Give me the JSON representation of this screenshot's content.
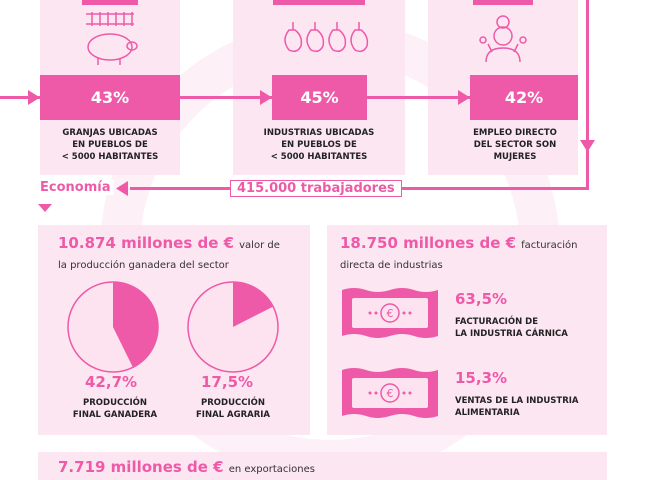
{
  "top_stats": [
    {
      "value": "43%",
      "caption": [
        "GRANJAS UBICADAS",
        "EN PUEBLOS DE",
        "< 5000 HABITANTES"
      ],
      "icon": "pig-icon"
    },
    {
      "value": "45%",
      "caption": [
        "INDUSTRIAS UBICADAS",
        "EN PUEBLOS DE",
        "< 5000 HABITANTES"
      ],
      "icon": "ham-icon"
    },
    {
      "value": "42%",
      "caption": [
        "EMPLEO DIRECTO",
        "DEL SECTOR SON",
        "MUJERES"
      ],
      "icon": "woman-icon"
    }
  ],
  "flow": {
    "section_label": "Economía",
    "workers_label": "415.000 trabajadores"
  },
  "production": {
    "amount": "10.874 millones de €",
    "desc_1": "valor de",
    "desc_2": "la producción ganadera del sector",
    "pies": [
      {
        "value": "42,7%",
        "fraction": 0.427,
        "caption": [
          "PRODUCCIÓN",
          "FINAL GANADERA"
        ]
      },
      {
        "value": "17,5%",
        "fraction": 0.175,
        "caption": [
          "PRODUCCIÓN",
          "FINAL AGRARIA"
        ]
      }
    ]
  },
  "industry": {
    "amount": "18.750 millones de €",
    "desc_1": "facturación",
    "desc_2": "directa de industrias",
    "items": [
      {
        "value": "63,5%",
        "caption": [
          "FACTURACIÓN DE",
          "LA INDUSTRIA CÁRNICA"
        ],
        "icon": "banknote-icon"
      },
      {
        "value": "15,3%",
        "caption": [
          "VENTAS DE LA INDUSTRIA",
          "ALIMENTARIA"
        ],
        "icon": "banknote-icon"
      }
    ]
  },
  "exports": {
    "amount": "7.719 millones de €",
    "desc": "en exportaciones"
  },
  "colors": {
    "accent": "#ee5aa8",
    "card": "#fce6f1",
    "pie_light": "#fde3f0"
  }
}
